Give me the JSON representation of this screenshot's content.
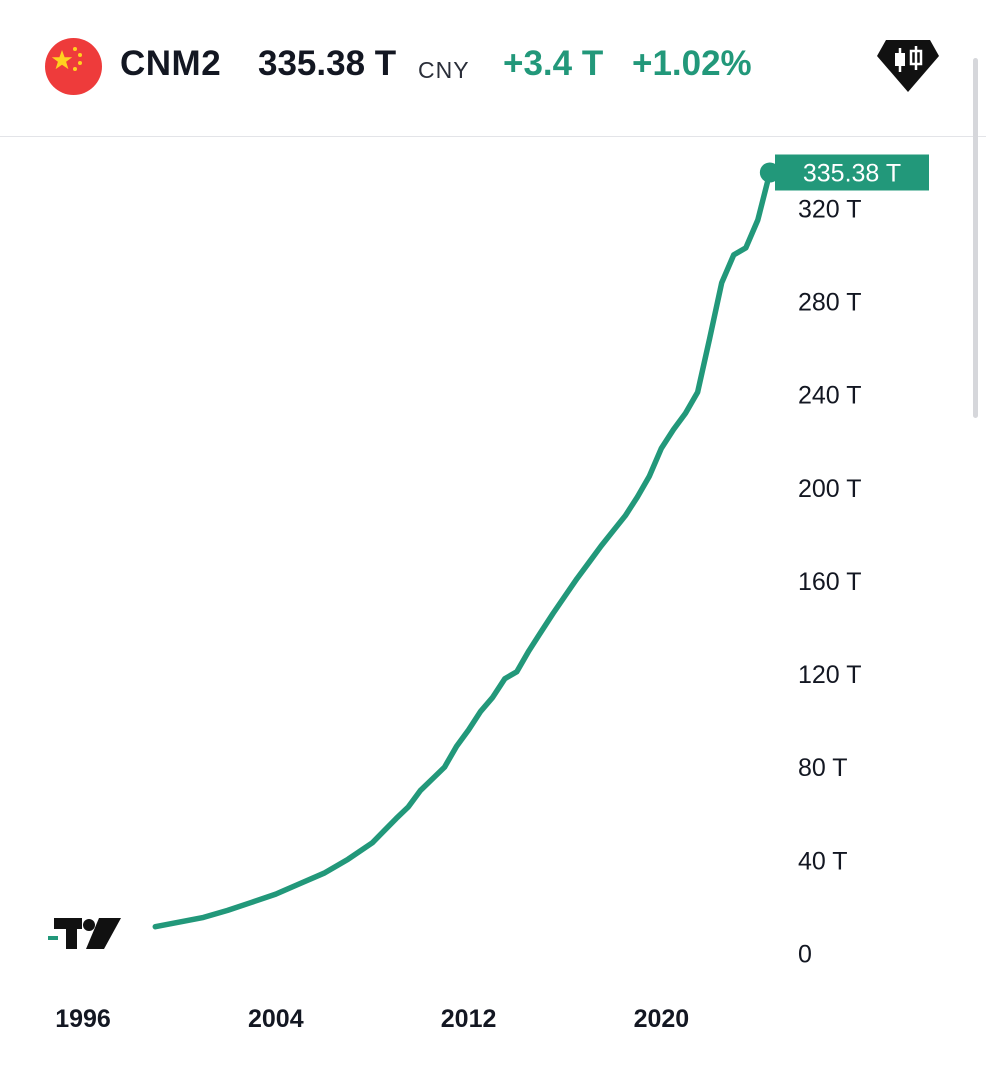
{
  "header": {
    "symbol": "CNM2",
    "price": "335.38 T",
    "currency": "CNY",
    "change": "+3.4 T",
    "change_percent": "+1.02%",
    "flag_icon": "china-flag-icon",
    "brand_icon": "candlestick-diamond-icon"
  },
  "colors": {
    "accent": "#22987a",
    "text": "#131722",
    "flag_red": "#ee3b3b",
    "flag_star": "#ffd21f"
  },
  "chart_data": {
    "type": "line",
    "title": "",
    "xlabel": "",
    "ylabel": "",
    "ylim": [
      0,
      335.38
    ],
    "y_ticks": [
      "0",
      "40 T",
      "80 T",
      "120 T",
      "160 T",
      "200 T",
      "240 T",
      "280 T",
      "320 T"
    ],
    "y_tick_values": [
      0,
      40,
      80,
      120,
      160,
      200,
      240,
      280,
      320
    ],
    "x_ticks": [
      "1996",
      "2004",
      "2012",
      "2020"
    ],
    "x_tick_values": [
      1996,
      2004,
      2012,
      2020
    ],
    "last_value_label": "335.38 T",
    "grid": false,
    "series": [
      {
        "color": "#22987a",
        "x": [
          1999.0,
          2000.0,
          2001.0,
          2002.0,
          2003.0,
          2004.0,
          2005.0,
          2006.0,
          2007.0,
          2008.0,
          2009.0,
          2009.5,
          2010.0,
          2010.5,
          2011.0,
          2011.5,
          2012.0,
          2012.5,
          2013.0,
          2013.5,
          2014.0,
          2014.5,
          2015.0,
          2015.5,
          2016.0,
          2016.5,
          2017.0,
          2017.5,
          2018.0,
          2018.5,
          2019.0,
          2019.5,
          2020.0,
          2020.5,
          2021.0,
          2021.5,
          2022.0,
          2022.5,
          2023.0,
          2023.5,
          2024.0,
          2024.5
        ],
        "values": [
          11.5,
          13.5,
          15.5,
          18.5,
          22.0,
          25.5,
          30.0,
          34.5,
          40.5,
          47.5,
          58.0,
          63.0,
          70.0,
          75.0,
          80.0,
          89.0,
          96.0,
          104.0,
          110.0,
          118.0,
          121.0,
          130.0,
          138.0,
          146.0,
          153.5,
          161.0,
          168.0,
          175.0,
          181.5,
          188.0,
          196.0,
          205.0,
          217.0,
          225.0,
          232.0,
          241.0,
          264.0,
          288.0,
          300.0,
          303.0,
          315.0,
          335.38
        ]
      }
    ]
  }
}
